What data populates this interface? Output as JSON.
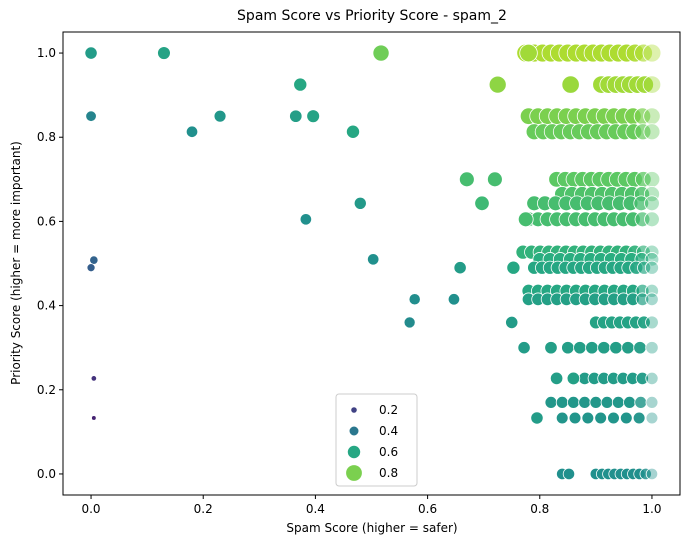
{
  "chart_data": {
    "type": "scatter",
    "title": "Spam Score vs Priority Score - spam_2",
    "xlabel": "Spam Score (higher = safer)",
    "ylabel": "Priority Score (higher = more important)",
    "xlim": [
      -0.05,
      1.05
    ],
    "ylim": [
      -0.05,
      1.05
    ],
    "xticks": [
      "0.0",
      "0.2",
      "0.4",
      "0.6",
      "0.8",
      "1.0"
    ],
    "yticks": [
      "0.0",
      "0.2",
      "0.4",
      "0.6",
      "0.8",
      "1.0"
    ],
    "grid": false,
    "colormap": "viridis",
    "hue_range": [
      0.0,
      1.0
    ],
    "legend": {
      "placement": "lower center",
      "entries": [
        {
          "label": "0.2",
          "value": 0.2
        },
        {
          "label": "0.4",
          "value": 0.4
        },
        {
          "label": "0.6",
          "value": 0.6
        },
        {
          "label": "0.8",
          "value": 0.8
        }
      ]
    },
    "points": [
      {
        "x": 0.0,
        "y": 1.0,
        "v": 0.55
      },
      {
        "x": 0.13,
        "y": 1.0,
        "v": 0.58
      },
      {
        "x": 0.517,
        "y": 1.0,
        "v": 0.78
      },
      {
        "x": 0.0,
        "y": 0.85,
        "v": 0.45
      },
      {
        "x": 0.18,
        "y": 0.813,
        "v": 0.5
      },
      {
        "x": 0.23,
        "y": 0.85,
        "v": 0.53
      },
      {
        "x": 0.365,
        "y": 0.85,
        "v": 0.56
      },
      {
        "x": 0.373,
        "y": 0.925,
        "v": 0.6
      },
      {
        "x": 0.396,
        "y": 0.85,
        "v": 0.58
      },
      {
        "x": 0.467,
        "y": 0.813,
        "v": 0.6
      },
      {
        "x": 0.005,
        "y": 0.508,
        "v": 0.32
      },
      {
        "x": 0.0,
        "y": 0.49,
        "v": 0.3
      },
      {
        "x": 0.005,
        "y": 0.227,
        "v": 0.15
      },
      {
        "x": 0.005,
        "y": 0.133,
        "v": 0.1
      },
      {
        "x": 0.383,
        "y": 0.605,
        "v": 0.5
      },
      {
        "x": 0.48,
        "y": 0.643,
        "v": 0.54
      },
      {
        "x": 0.503,
        "y": 0.51,
        "v": 0.5
      },
      {
        "x": 0.568,
        "y": 0.36,
        "v": 0.48
      },
      {
        "x": 0.577,
        "y": 0.415,
        "v": 0.49
      },
      {
        "x": 0.647,
        "y": 0.415,
        "v": 0.5
      },
      {
        "x": 0.658,
        "y": 0.49,
        "v": 0.55
      },
      {
        "x": 0.67,
        "y": 0.7,
        "v": 0.7
      },
      {
        "x": 0.697,
        "y": 0.643,
        "v": 0.68
      },
      {
        "x": 0.72,
        "y": 0.7,
        "v": 0.7
      },
      {
        "x": 0.725,
        "y": 0.925,
        "v": 0.83
      },
      {
        "x": 0.75,
        "y": 0.36,
        "v": 0.55
      },
      {
        "x": 0.753,
        "y": 0.49,
        "v": 0.6
      },
      {
        "x": 0.772,
        "y": 0.3,
        "v": 0.55
      },
      {
        "x": 0.775,
        "y": 0.605,
        "v": 0.7
      },
      {
        "x": 0.82,
        "y": 0.3,
        "v": 0.56
      },
      {
        "x": 0.83,
        "y": 0.227,
        "v": 0.56
      },
      {
        "x": 0.855,
        "y": 0.925,
        "v": 0.85
      },
      {
        "x": 0.78,
        "y": 1.0,
        "v": 0.86
      },
      {
        "x": 0.84,
        "y": 0.0,
        "v": 0.5
      },
      {
        "x": 0.852,
        "y": 0.0,
        "v": 0.5
      },
      {
        "x": 0.795,
        "y": 0.133,
        "v": 0.55
      },
      {
        "x": 0.86,
        "y": 0.227,
        "v": 0.57
      }
    ],
    "clusters": [
      {
        "y": 1.0,
        "x_from": 0.775,
        "x_to": 1.0,
        "count": 16,
        "v": 0.88
      },
      {
        "y": 0.925,
        "x_from": 0.91,
        "x_to": 1.0,
        "count": 8,
        "v": 0.86
      },
      {
        "y": 0.85,
        "x_from": 0.78,
        "x_to": 1.0,
        "count": 14,
        "v": 0.8
      },
      {
        "y": 0.813,
        "x_from": 0.79,
        "x_to": 1.0,
        "count": 14,
        "v": 0.77
      },
      {
        "y": 0.7,
        "x_from": 0.83,
        "x_to": 1.0,
        "count": 12,
        "v": 0.75
      },
      {
        "y": 0.665,
        "x_from": 0.84,
        "x_to": 1.0,
        "count": 10,
        "v": 0.72
      },
      {
        "y": 0.643,
        "x_from": 0.79,
        "x_to": 1.0,
        "count": 12,
        "v": 0.7
      },
      {
        "y": 0.605,
        "x_from": 0.78,
        "x_to": 1.0,
        "count": 14,
        "v": 0.7
      },
      {
        "y": 0.527,
        "x_from": 0.77,
        "x_to": 1.0,
        "count": 16,
        "v": 0.65
      },
      {
        "y": 0.51,
        "x_from": 0.8,
        "x_to": 1.0,
        "count": 12,
        "v": 0.63
      },
      {
        "y": 0.49,
        "x_from": 0.79,
        "x_to": 1.0,
        "count": 16,
        "v": 0.6
      },
      {
        "y": 0.435,
        "x_from": 0.78,
        "x_to": 1.0,
        "count": 14,
        "v": 0.6
      },
      {
        "y": 0.415,
        "x_from": 0.78,
        "x_to": 1.0,
        "count": 14,
        "v": 0.57
      },
      {
        "y": 0.36,
        "x_from": 0.9,
        "x_to": 1.0,
        "count": 8,
        "v": 0.58
      },
      {
        "y": 0.3,
        "x_from": 0.85,
        "x_to": 1.0,
        "count": 8,
        "v": 0.56
      },
      {
        "y": 0.227,
        "x_from": 0.88,
        "x_to": 1.0,
        "count": 8,
        "v": 0.55
      },
      {
        "y": 0.17,
        "x_from": 0.82,
        "x_to": 1.0,
        "count": 10,
        "v": 0.53
      },
      {
        "y": 0.133,
        "x_from": 0.84,
        "x_to": 1.0,
        "count": 8,
        "v": 0.52
      },
      {
        "y": 0.0,
        "x_from": 0.9,
        "x_to": 1.0,
        "count": 10,
        "v": 0.5
      }
    ]
  }
}
